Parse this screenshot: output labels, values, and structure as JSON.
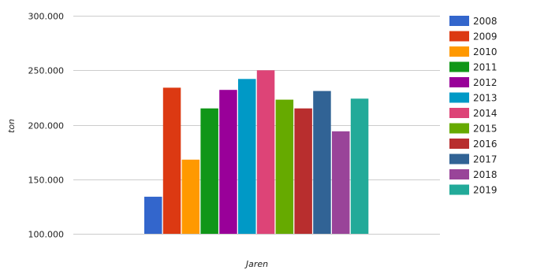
{
  "chart_data": {
    "type": "bar",
    "title": "",
    "xlabel": "Jaren",
    "ylabel": "ton",
    "ylim": [
      100000,
      300000
    ],
    "yticks": [
      {
        "value": 100000,
        "label": "100.000"
      },
      {
        "value": 150000,
        "label": "150.000"
      },
      {
        "value": 200000,
        "label": "200.000"
      },
      {
        "value": 250000,
        "label": "250.000"
      },
      {
        "value": 300000,
        "label": "300.000"
      }
    ],
    "grid": true,
    "legend_position": "right",
    "series": [
      {
        "name": "2008",
        "value": 134000,
        "color": "#3366cc"
      },
      {
        "name": "2009",
        "value": 234000,
        "color": "#dc3912"
      },
      {
        "name": "2010",
        "value": 168000,
        "color": "#ff9900"
      },
      {
        "name": "2011",
        "value": 215000,
        "color": "#109618"
      },
      {
        "name": "2012",
        "value": 232000,
        "color": "#990099"
      },
      {
        "name": "2013",
        "value": 242000,
        "color": "#0099c6"
      },
      {
        "name": "2014",
        "value": 250000,
        "color": "#dd4477"
      },
      {
        "name": "2015",
        "value": 223000,
        "color": "#66aa00"
      },
      {
        "name": "2016",
        "value": 215000,
        "color": "#b82e2e"
      },
      {
        "name": "2017",
        "value": 231000,
        "color": "#316395"
      },
      {
        "name": "2018",
        "value": 194000,
        "color": "#994499"
      },
      {
        "name": "2019",
        "value": 224000,
        "color": "#22aa99"
      }
    ]
  }
}
